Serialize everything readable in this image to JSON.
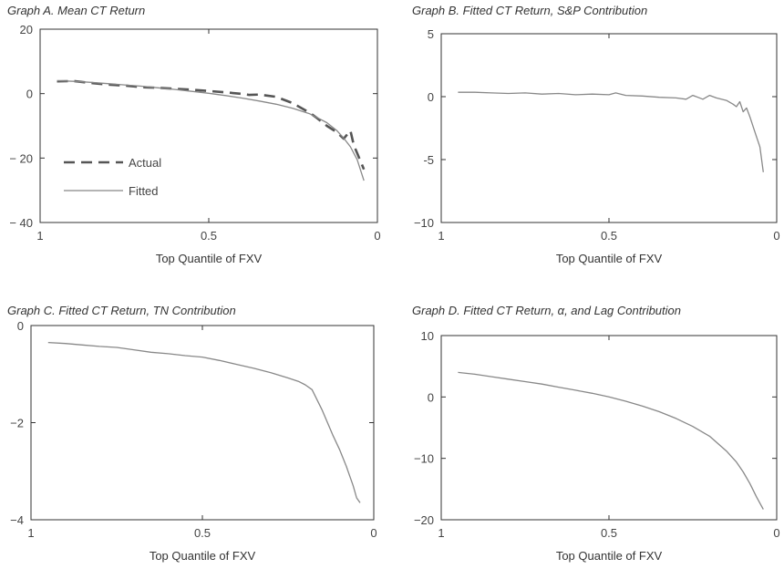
{
  "chart_data": [
    {
      "panel": "A",
      "type": "line",
      "title": "Graph A. Mean CT Return",
      "xlabel": "Top Quantile of FXV",
      "ylabel": "",
      "xlim": [
        1,
        0
      ],
      "ylim": [
        -40,
        20
      ],
      "x_ticks": [
        1,
        0.5,
        0
      ],
      "x_tick_labels": [
        "1",
        "0.5",
        "0"
      ],
      "y_ticks": [
        -40,
        -20,
        0,
        20
      ],
      "y_tick_labels": [
        "− 40",
        "− 20",
        "0",
        "20"
      ],
      "grid": false,
      "legend": "lower-left",
      "series": [
        {
          "name": "Actual",
          "style": "dashed",
          "color": "#555555",
          "x": [
            0.95,
            0.9,
            0.85,
            0.8,
            0.75,
            0.7,
            0.65,
            0.6,
            0.55,
            0.5,
            0.45,
            0.4,
            0.38,
            0.35,
            0.3,
            0.25,
            0.2,
            0.18,
            0.15,
            0.12,
            0.1,
            0.08,
            0.07,
            0.06,
            0.05,
            0.04
          ],
          "y": [
            3.8,
            3.9,
            3.3,
            2.8,
            2.5,
            2.0,
            1.8,
            1.5,
            1.2,
            0.8,
            0.4,
            -0.1,
            -0.4,
            -0.3,
            -1.0,
            -3.0,
            -6.0,
            -7.5,
            -10.0,
            -12.0,
            -14.0,
            -11.5,
            -16.0,
            -18.5,
            -21.0,
            -23.5
          ]
        },
        {
          "name": "Fitted",
          "style": "solid",
          "color": "#888888",
          "x": [
            0.95,
            0.9,
            0.85,
            0.8,
            0.75,
            0.7,
            0.65,
            0.6,
            0.55,
            0.5,
            0.45,
            0.4,
            0.35,
            0.3,
            0.25,
            0.2,
            0.15,
            0.12,
            0.1,
            0.08,
            0.06,
            0.04
          ],
          "y": [
            4.0,
            3.8,
            3.5,
            3.1,
            2.7,
            2.3,
            1.8,
            1.3,
            0.7,
            0.1,
            -0.6,
            -1.4,
            -2.3,
            -3.3,
            -4.6,
            -6.3,
            -9.0,
            -11.5,
            -13.8,
            -16.5,
            -20.5,
            -27.0
          ]
        }
      ]
    },
    {
      "panel": "B",
      "type": "line",
      "title": "Graph B. Fitted CT Return, S&P Contribution",
      "xlabel": "Top Quantile of FXV",
      "ylabel": "",
      "xlim": [
        1,
        0
      ],
      "ylim": [
        -10,
        5
      ],
      "x_ticks": [
        1,
        0.5,
        0
      ],
      "x_tick_labels": [
        "1",
        "0.5",
        "0"
      ],
      "y_ticks": [
        -10,
        -5,
        0,
        5
      ],
      "y_tick_labels": [
        "−10",
        "-5",
        "0",
        "5"
      ],
      "grid": false,
      "series": [
        {
          "color": "#888888",
          "x": [
            0.95,
            0.9,
            0.85,
            0.8,
            0.75,
            0.7,
            0.65,
            0.6,
            0.55,
            0.5,
            0.48,
            0.45,
            0.4,
            0.35,
            0.3,
            0.27,
            0.25,
            0.22,
            0.2,
            0.18,
            0.15,
            0.13,
            0.12,
            0.11,
            0.1,
            0.09,
            0.08,
            0.07,
            0.06,
            0.05,
            0.04
          ],
          "y": [
            0.35,
            0.35,
            0.3,
            0.25,
            0.3,
            0.2,
            0.25,
            0.15,
            0.2,
            0.15,
            0.3,
            0.1,
            0.05,
            -0.05,
            -0.1,
            -0.2,
            0.1,
            -0.2,
            0.1,
            -0.1,
            -0.3,
            -0.6,
            -0.8,
            -0.4,
            -1.2,
            -0.9,
            -1.6,
            -2.4,
            -3.2,
            -4.0,
            -6.0
          ]
        }
      ]
    },
    {
      "panel": "C",
      "type": "line",
      "title": "Graph C. Fitted CT Return, TN Contribution",
      "xlabel": "Top Quantile of FXV",
      "ylabel": "",
      "xlim": [
        1,
        0
      ],
      "ylim": [
        -4,
        0
      ],
      "x_ticks": [
        1,
        0.5,
        0
      ],
      "x_tick_labels": [
        "1",
        "0.5",
        "0"
      ],
      "y_ticks": [
        -4,
        -2,
        0
      ],
      "y_tick_labels": [
        "−4",
        "−2",
        "0"
      ],
      "grid": false,
      "series": [
        {
          "color": "#888888",
          "x": [
            0.95,
            0.9,
            0.85,
            0.8,
            0.75,
            0.7,
            0.65,
            0.6,
            0.55,
            0.5,
            0.45,
            0.4,
            0.35,
            0.3,
            0.25,
            0.22,
            0.2,
            0.18,
            0.15,
            0.12,
            0.1,
            0.08,
            0.06,
            0.05,
            0.04
          ],
          "y": [
            -0.35,
            -0.37,
            -0.4,
            -0.43,
            -0.45,
            -0.5,
            -0.55,
            -0.58,
            -0.62,
            -0.65,
            -0.72,
            -0.8,
            -0.88,
            -0.97,
            -1.08,
            -1.15,
            -1.22,
            -1.32,
            -1.75,
            -2.25,
            -2.55,
            -2.9,
            -3.3,
            -3.55,
            -3.65
          ]
        }
      ]
    },
    {
      "panel": "D",
      "type": "line",
      "title": "Graph D. Fitted CT Return, α, and Lag Contribution",
      "xlabel": "Top Quantile of FXV",
      "ylabel": "",
      "xlim": [
        1,
        0
      ],
      "ylim": [
        -20,
        10
      ],
      "x_ticks": [
        1,
        0.5,
        0
      ],
      "x_tick_labels": [
        "1",
        "0.5",
        "0"
      ],
      "y_ticks": [
        -20,
        -10,
        0,
        10
      ],
      "y_tick_labels": [
        "−20",
        "−10",
        "0",
        "10"
      ],
      "grid": false,
      "series": [
        {
          "color": "#888888",
          "x": [
            0.95,
            0.9,
            0.85,
            0.8,
            0.75,
            0.7,
            0.65,
            0.6,
            0.55,
            0.5,
            0.45,
            0.4,
            0.35,
            0.3,
            0.25,
            0.2,
            0.15,
            0.12,
            0.1,
            0.08,
            0.06,
            0.04
          ],
          "y": [
            4.0,
            3.7,
            3.3,
            2.9,
            2.5,
            2.1,
            1.6,
            1.1,
            0.6,
            0.0,
            -0.7,
            -1.5,
            -2.4,
            -3.5,
            -4.8,
            -6.4,
            -8.8,
            -10.6,
            -12.2,
            -14.1,
            -16.3,
            -18.3
          ]
        }
      ]
    }
  ]
}
